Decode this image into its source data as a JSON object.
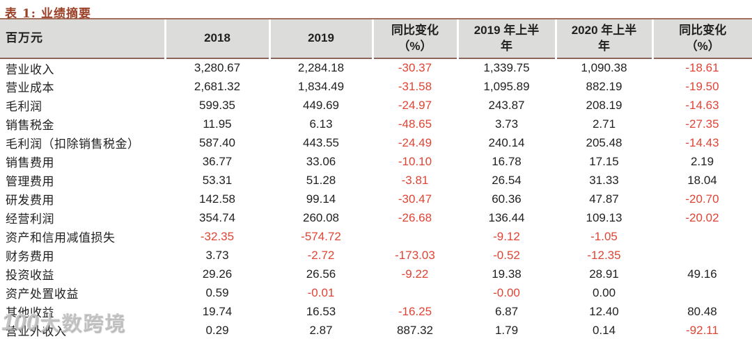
{
  "title": "表 1:  业绩摘要",
  "colors": {
    "accent_brown": "#9b4026",
    "negative_red": "#df4434",
    "header_bg": "#dcdcda",
    "body_text": "#1f1f1f"
  },
  "watermark": {
    "logo": "100",
    "text": "大数跨境"
  },
  "table": {
    "headers": [
      "百万元",
      "2018",
      "2019",
      "同比变化\n（%）",
      "2019 年上半\n年",
      "2020 年上半\n年",
      "同比变化\n（%）"
    ],
    "rows": [
      {
        "label": "营业收入",
        "values": [
          "3,280.67",
          "2,284.18",
          "-30.37",
          "1,339.75",
          "1,090.38",
          "-18.61"
        ]
      },
      {
        "label": "营业成本",
        "values": [
          "2,681.32",
          "1,834.49",
          "-31.58",
          "1,095.89",
          "882.19",
          "-19.50"
        ]
      },
      {
        "label": "毛利润",
        "values": [
          "599.35",
          "449.69",
          "-24.97",
          "243.87",
          "208.19",
          "-14.63"
        ]
      },
      {
        "label": "销售税金",
        "values": [
          "11.95",
          "6.13",
          "-48.65",
          "3.73",
          "2.71",
          "-27.35"
        ]
      },
      {
        "label": "毛利润（扣除销售税金）",
        "values": [
          "587.40",
          "443.55",
          "-24.49",
          "240.14",
          "205.48",
          "-14.43"
        ]
      },
      {
        "label": "销售费用",
        "values": [
          "36.77",
          "33.06",
          "-10.10",
          "16.78",
          "17.15",
          "2.19"
        ]
      },
      {
        "label": "管理费用",
        "values": [
          "53.31",
          "51.28",
          "-3.81",
          "26.54",
          "31.33",
          "18.04"
        ]
      },
      {
        "label": "研发费用",
        "values": [
          "142.58",
          "99.14",
          "-30.47",
          "60.36",
          "47.87",
          "-20.70"
        ]
      },
      {
        "label": "经营利润",
        "values": [
          "354.74",
          "260.08",
          "-26.68",
          "136.44",
          "109.13",
          "-20.02"
        ]
      },
      {
        "label": "资产和信用减值损失",
        "values": [
          "-32.35",
          "-574.72",
          "",
          "-9.12",
          "-1.05",
          ""
        ]
      },
      {
        "label": "财务费用",
        "values": [
          "3.73",
          "-2.72",
          "-173.03",
          "-0.52",
          "-12.35",
          ""
        ]
      },
      {
        "label": "投资收益",
        "values": [
          "29.26",
          "26.56",
          "-9.22",
          "19.38",
          "28.91",
          "49.16"
        ]
      },
      {
        "label": "资产处置收益",
        "values": [
          "0.59",
          "-0.01",
          "",
          "-0.00",
          "0.00",
          ""
        ]
      },
      {
        "label": "其他收益",
        "values": [
          "19.74",
          "16.53",
          "-16.25",
          "6.87",
          "12.40",
          "80.48"
        ]
      },
      {
        "label": "营业外收入",
        "values": [
          "0.29",
          "2.87",
          "887.32",
          "1.79",
          "0.14",
          "-92.11"
        ]
      }
    ]
  }
}
